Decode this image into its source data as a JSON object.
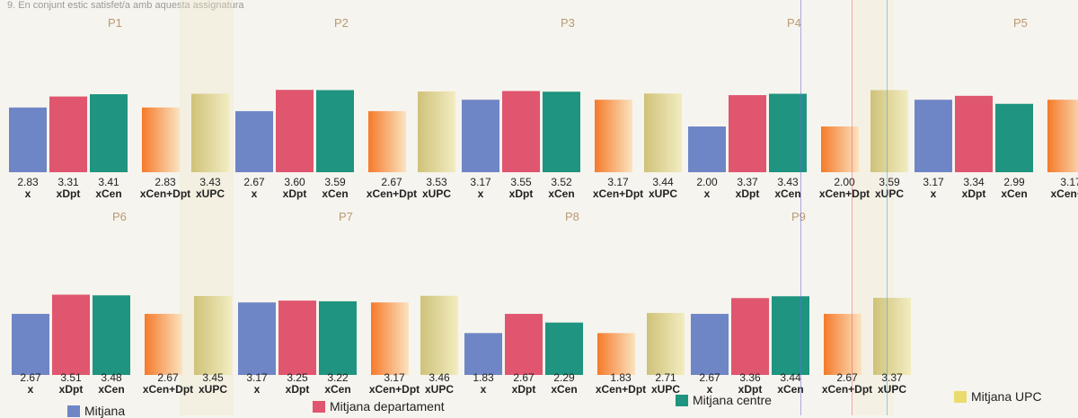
{
  "header": {
    "text": "9. En conjunt estic satisfet/a amb aquesta assignatura"
  },
  "chart_data": [
    {
      "type": "bar",
      "title": "P1",
      "categories": [
        "x",
        "xDpt",
        "xCen",
        "xCen+Dpt",
        "xUPC"
      ],
      "values": [
        2.83,
        3.31,
        3.41,
        2.83,
        3.43
      ],
      "value_labels": [
        "2.83",
        "3.31",
        "3.41",
        "2.83",
        "3.43"
      ]
    },
    {
      "type": "bar",
      "title": "P2",
      "categories": [
        "x",
        "xDpt",
        "xCen",
        "xCen+Dpt",
        "xUPC"
      ],
      "values": [
        2.67,
        3.6,
        3.59,
        2.67,
        3.53
      ],
      "value_labels": [
        "2.67",
        "3.60",
        "3.59",
        "2.67",
        "3.53"
      ]
    },
    {
      "type": "bar",
      "title": "P3",
      "categories": [
        "x",
        "xDpt",
        "xCen",
        "xCen+Dpt",
        "xUPC"
      ],
      "values": [
        3.17,
        3.55,
        3.52,
        3.17,
        3.44
      ],
      "value_labels": [
        "3.17",
        "3.55",
        "3.52",
        "3.17",
        "3.44"
      ]
    },
    {
      "type": "bar",
      "title": "P4",
      "categories": [
        "x",
        "xDpt",
        "xCen",
        "xCen+Dpt",
        "xUPC"
      ],
      "values": [
        2.0,
        3.37,
        3.43,
        2.0,
        3.59
      ],
      "value_labels": [
        "2.00",
        "3.37",
        "3.43",
        "2.00",
        "3.59"
      ]
    },
    {
      "type": "bar",
      "title": "P5",
      "categories": [
        "x",
        "xDpt",
        "xCen",
        "xCen+D"
      ],
      "values": [
        3.17,
        3.34,
        2.99,
        3.17
      ],
      "value_labels": [
        "3.17",
        "3.34",
        "2.99",
        "3.17"
      ]
    },
    {
      "type": "bar",
      "title": "P6",
      "categories": [
        "x",
        "xDpt",
        "xCen",
        "xCen+Dpt",
        "xUPC"
      ],
      "values": [
        2.67,
        3.51,
        3.48,
        2.67,
        3.45
      ],
      "value_labels": [
        "2.67",
        "3.51",
        "3.48",
        "2.67",
        "3.45"
      ]
    },
    {
      "type": "bar",
      "title": "P7",
      "categories": [
        "x",
        "xDpt",
        "xCen",
        "xCen+Dpt",
        "xUPC"
      ],
      "values": [
        3.17,
        3.25,
        3.22,
        3.17,
        3.46
      ],
      "value_labels": [
        "3.17",
        "3.25",
        "3.22",
        "3.17",
        "3.46"
      ]
    },
    {
      "type": "bar",
      "title": "P8",
      "categories": [
        "x",
        "xDpt",
        "xCen",
        "xCen+Dpt",
        "xUPC"
      ],
      "values": [
        1.83,
        2.67,
        2.29,
        1.83,
        2.71
      ],
      "value_labels": [
        "1.83",
        "2.67",
        "2.29",
        "1.83",
        "2.71"
      ]
    },
    {
      "type": "bar",
      "title": "P9",
      "categories": [
        "x",
        "xDpt",
        "xCen",
        "xCen+Dpt",
        "xUPC"
      ],
      "values": [
        2.67,
        3.36,
        3.44,
        2.67,
        3.37
      ],
      "value_labels": [
        "2.67",
        "3.36",
        "3.44",
        "2.67",
        "3.37"
      ]
    }
  ],
  "series_colors": [
    "#6f86c6",
    "#e0566f",
    "#1f9480",
    "#f58a3a",
    "#d8cd7c"
  ],
  "legend": [
    {
      "label": "Mitjana",
      "color": "#6f86c6"
    },
    {
      "label": "Mitjana departament",
      "color": "#e0566f"
    },
    {
      "label": "Mitjana centre",
      "color": "#1f9480"
    },
    {
      "label": "Mitjana UPC",
      "color": "#e9dc6e"
    }
  ]
}
